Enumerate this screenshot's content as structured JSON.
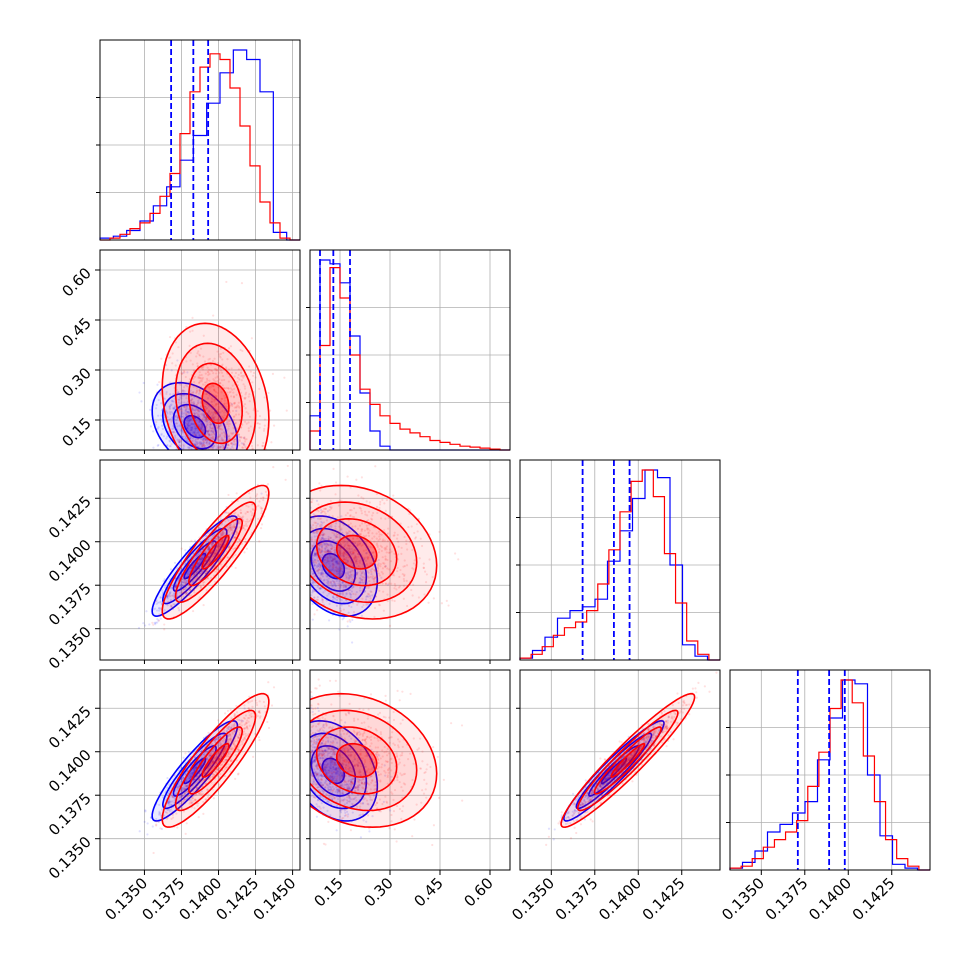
{
  "chart_data": {
    "type": "corner",
    "grid": true,
    "colors": {
      "blue": "#0000ff",
      "red": "#ff0000"
    },
    "series": [
      {
        "color": "blue"
      },
      {
        "color": "red"
      }
    ],
    "parameters": [
      {
        "index": 0,
        "range": [
          0.132,
          0.1455
        ],
        "ticks": [
          "0.1350",
          "0.1375",
          "0.1400",
          "0.1425",
          "0.1450"
        ],
        "tick_values": [
          0.135,
          0.1375,
          0.14,
          0.1425,
          0.145
        ]
      },
      {
        "index": 1,
        "range": [
          0.06,
          0.66
        ],
        "ticks": [
          "0.15",
          "0.30",
          "0.45",
          "0.60"
        ],
        "tick_values": [
          0.15,
          0.3,
          0.45,
          0.6
        ]
      },
      {
        "index": 2,
        "range": [
          0.1332,
          0.1447
        ],
        "ticks": [
          "0.1350",
          "0.1375",
          "0.1400",
          "0.1425"
        ],
        "tick_values": [
          0.135,
          0.1375,
          0.14,
          0.1425
        ]
      },
      {
        "index": 3,
        "range": [
          0.1332,
          0.1447
        ],
        "ticks": [
          "0.1350",
          "0.1375",
          "0.1400",
          "0.1425"
        ],
        "tick_values": [
          0.135,
          0.1375,
          0.14,
          0.1425
        ]
      }
    ],
    "quantiles_blue": [
      [
        0.1368,
        0.1383,
        0.1393
      ],
      [
        0.09,
        0.13,
        0.18
      ],
      [
        0.1368,
        0.1386,
        0.1395
      ],
      [
        0.1371,
        0.1389,
        0.1398
      ]
    ],
    "histograms": [
      {
        "blue": [
          0.01,
          0.02,
          0.05,
          0.1,
          0.18,
          0.28,
          0.42,
          0.55,
          0.72,
          0.88,
          1.0,
          0.95,
          0.78,
          0.04,
          0.0
        ],
        "red": [
          0.0,
          0.01,
          0.03,
          0.06,
          0.09,
          0.14,
          0.23,
          0.35,
          0.56,
          0.78,
          0.91,
          0.98,
          0.95,
          0.8,
          0.6,
          0.39,
          0.2,
          0.09,
          0.01,
          0.0
        ]
      },
      {
        "blue": [
          0.18,
          1.0,
          0.98,
          0.88,
          0.6,
          0.3,
          0.1,
          0.02,
          0.0,
          0.0,
          0.0,
          0.0,
          0.0,
          0.0,
          0.0,
          0.0,
          0.0,
          0.0,
          0.0,
          0.0
        ],
        "red": [
          0.1,
          0.55,
          0.96,
          0.8,
          0.5,
          0.32,
          0.24,
          0.18,
          0.14,
          0.11,
          0.09,
          0.07,
          0.05,
          0.04,
          0.03,
          0.02,
          0.015,
          0.01,
          0.005,
          0.0
        ]
      },
      {
        "blue": [
          0.01,
          0.05,
          0.12,
          0.22,
          0.26,
          0.28,
          0.32,
          0.52,
          0.68,
          0.85,
          1.0,
          0.96,
          0.5,
          0.08,
          0.02,
          0.0
        ],
        "red": [
          0.01,
          0.03,
          0.07,
          0.13,
          0.17,
          0.2,
          0.26,
          0.4,
          0.58,
          0.78,
          0.94,
          1.0,
          0.86,
          0.56,
          0.3,
          0.1,
          0.03,
          0.0
        ]
      },
      {
        "blue": [
          0.01,
          0.04,
          0.1,
          0.2,
          0.24,
          0.3,
          0.36,
          0.58,
          0.8,
          1.0,
          0.98,
          0.5,
          0.18,
          0.03,
          0.01,
          0.0
        ],
        "red": [
          0.01,
          0.02,
          0.06,
          0.12,
          0.16,
          0.2,
          0.26,
          0.44,
          0.62,
          0.85,
          1.0,
          0.88,
          0.6,
          0.36,
          0.16,
          0.06,
          0.02,
          0.0
        ]
      }
    ],
    "distributions": [
      {
        "blue": {
          "mean": [
            0.1384,
            0.13,
            0.1386,
            0.1389
          ],
          "sd": [
            0.0012,
            0.055,
            0.0012,
            0.0012
          ]
        },
        "red": {
          "mean": [
            0.1398,
            0.2,
            0.1394,
            0.1395
          ],
          "sd": [
            0.0015,
            0.1,
            0.0016,
            0.0016
          ]
        }
      }
    ],
    "correlations": {
      "blue": {
        "1_0": -0.35,
        "2_0": 0.9,
        "2_1": -0.3,
        "3_0": 0.9,
        "3_1": -0.3,
        "3_2": 0.95
      },
      "red": {
        "1_0": -0.2,
        "2_0": 0.88,
        "2_1": -0.2,
        "3_0": 0.88,
        "3_1": -0.2,
        "3_2": 0.95
      }
    }
  }
}
